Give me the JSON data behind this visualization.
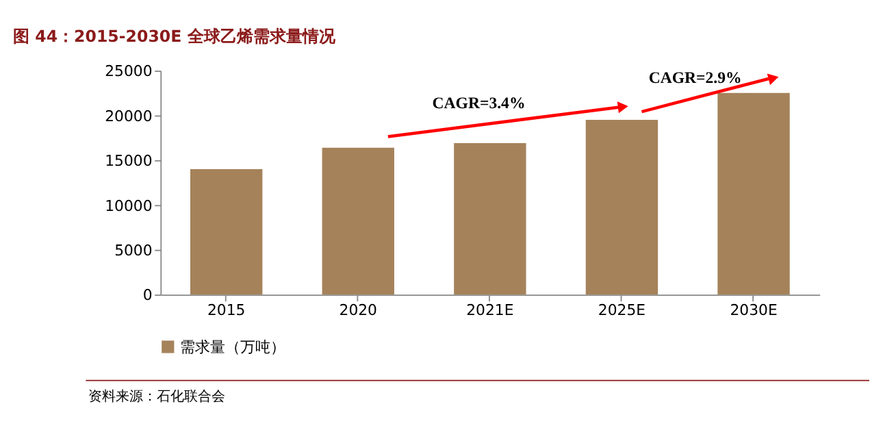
{
  "chart_data": {
    "type": "bar",
    "title": "图 44：2015-2030E 全球乙烯需求量情况",
    "categories": [
      "2015",
      "2020",
      "2021E",
      "2025E",
      "2030E"
    ],
    "series": [
      {
        "name": "需求量（万吨）",
        "color": "#a5825a",
        "values": [
          14000,
          16400,
          16900,
          19500,
          22500
        ]
      }
    ],
    "ylim": [
      0,
      25000
    ],
    "yticks": [
      0,
      5000,
      10000,
      15000,
      20000,
      25000
    ],
    "grid": false,
    "legend": "bottom",
    "annotations": [
      "CAGR=3.4%",
      "CAGR=2.9%",
      "资料来源：石化联合会"
    ]
  }
}
